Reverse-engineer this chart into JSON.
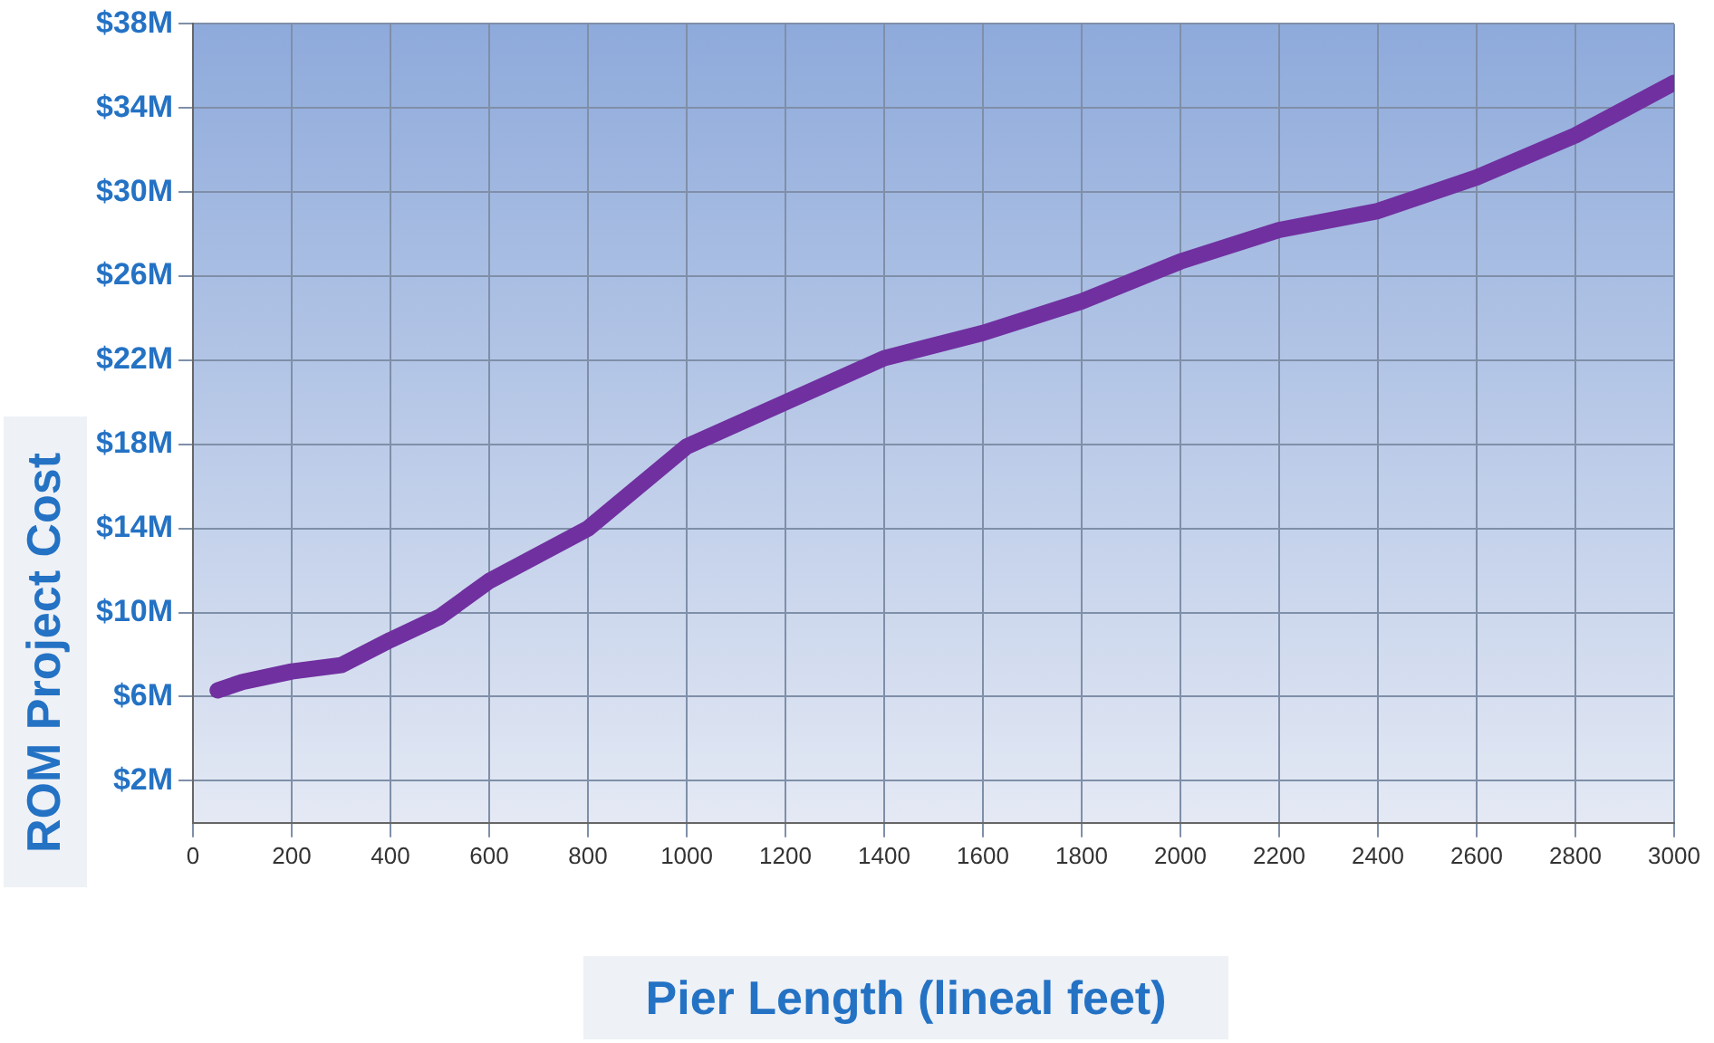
{
  "chart_data": {
    "type": "line",
    "xlabel": "Pier Length (lineal feet)",
    "ylabel": "ROM Project Cost",
    "series": [
      {
        "color": "#7030a0",
        "x": [
          50,
          100,
          200,
          300,
          400,
          500,
          600,
          800,
          1000,
          1200,
          1400,
          1600,
          1800,
          2000,
          2200,
          2400,
          2600,
          2800,
          3000
        ],
        "values": [
          6.3,
          6.7,
          7.2,
          7.5,
          8.7,
          9.8,
          11.5,
          14.0,
          17.9,
          20.0,
          22.1,
          23.3,
          24.8,
          26.7,
          28.2,
          29.1,
          30.7,
          32.7,
          35.2
        ]
      }
    ],
    "xlim": [
      0,
      3000
    ],
    "xticks": [
      0,
      200,
      400,
      600,
      800,
      1000,
      1200,
      1400,
      1600,
      1800,
      2000,
      2200,
      2400,
      2600,
      2800,
      3000
    ],
    "ylim": [
      0,
      38
    ],
    "yticks": [
      {
        "value": 2,
        "label": "$2M"
      },
      {
        "value": 6,
        "label": "$6M"
      },
      {
        "value": 10,
        "label": "$10M"
      },
      {
        "value": 14,
        "label": "$14M"
      },
      {
        "value": 18,
        "label": "$18M"
      },
      {
        "value": 22,
        "label": "$22M"
      },
      {
        "value": 26,
        "label": "$26M"
      },
      {
        "value": 30,
        "label": "$30M"
      },
      {
        "value": 34,
        "label": "$34M"
      },
      {
        "value": 38,
        "label": "$38M"
      }
    ],
    "grid": true,
    "legend": false,
    "marker": "none",
    "line_style": "solid"
  }
}
